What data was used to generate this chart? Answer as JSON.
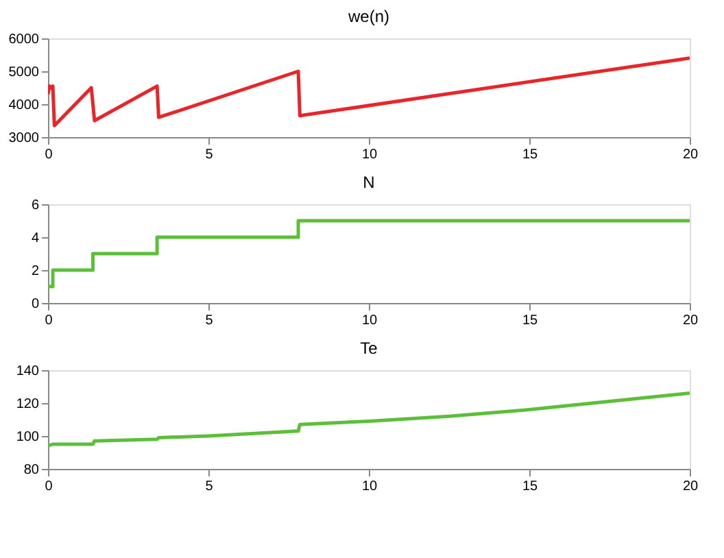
{
  "chart_data": [
    {
      "type": "line",
      "title": "we(n)",
      "xlim": [
        0,
        20
      ],
      "xticks": [
        0,
        5,
        10,
        15,
        20
      ],
      "ylim": [
        3000,
        6000
      ],
      "yticks": [
        3000,
        4000,
        5000,
        6000
      ],
      "grid": false,
      "series": [
        {
          "color": "#e8262a",
          "x": [
            0,
            0.05,
            0.1,
            0.15,
            0.2,
            1.35,
            1.45,
            3.4,
            3.45,
            7.8,
            7.85,
            20
          ],
          "values": [
            4300,
            4550,
            4500,
            4550,
            3350,
            4500,
            3500,
            4550,
            3600,
            5000,
            3650,
            5400
          ]
        }
      ]
    },
    {
      "type": "step",
      "title": "N",
      "xlim": [
        0,
        20
      ],
      "xticks": [
        0,
        5,
        10,
        15,
        20
      ],
      "ylim": [
        0,
        6
      ],
      "yticks": [
        0,
        2,
        4,
        6
      ],
      "grid": false,
      "series": [
        {
          "color": "#5cbf3a",
          "x": [
            0,
            0.15,
            1.4,
            3.4,
            7.8,
            20
          ],
          "values": [
            1,
            2,
            3,
            4,
            5,
            5
          ]
        }
      ]
    },
    {
      "type": "line",
      "title": "Te",
      "xlim": [
        0,
        20
      ],
      "xticks": [
        0,
        5,
        10,
        15,
        20
      ],
      "ylim": [
        80,
        140
      ],
      "yticks": [
        80,
        100,
        120,
        140
      ],
      "grid": false,
      "series": [
        {
          "color": "#5cbf3a",
          "x": [
            0,
            0.15,
            1.4,
            1.45,
            3.4,
            3.45,
            5,
            7.8,
            7.85,
            10,
            12.5,
            15,
            17.5,
            20
          ],
          "values": [
            94,
            95,
            95,
            97,
            98,
            99,
            100,
            103,
            107,
            109,
            112,
            116,
            121,
            126
          ]
        }
      ]
    }
  ]
}
